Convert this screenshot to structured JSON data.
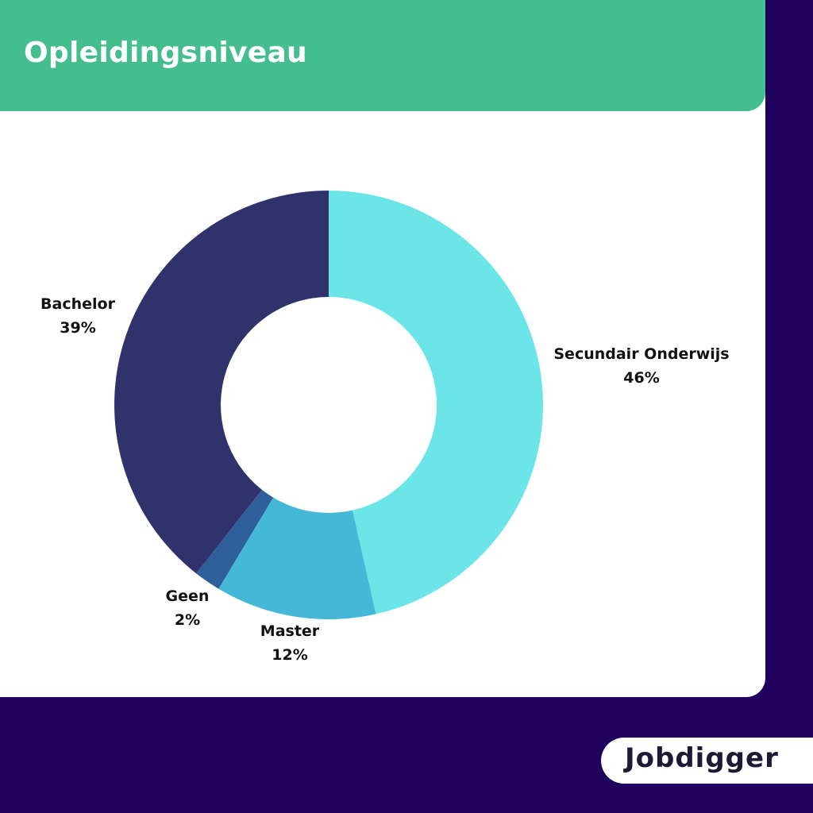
{
  "header": {
    "title": "Opleidingsniveau"
  },
  "logo": {
    "text": "Jobdigger"
  },
  "colors": {
    "background": "#1f005c",
    "header": "#43be8c",
    "card": "#ffffff"
  },
  "chart_data": {
    "type": "pie",
    "variant": "donut",
    "title": "Opleidingsniveau",
    "slices": [
      {
        "label": "Secundair Onderwijs",
        "value": 46,
        "value_label": "46%",
        "color": "#6ce5e8"
      },
      {
        "label": "Master",
        "value": 12,
        "value_label": "12%",
        "color": "#44b8d6"
      },
      {
        "label": "Geen",
        "value": 2,
        "value_label": "2%",
        "color": "#2e5f99"
      },
      {
        "label": "Bachelor",
        "value": 39,
        "value_label": "39%",
        "color": "#30336b"
      }
    ]
  }
}
